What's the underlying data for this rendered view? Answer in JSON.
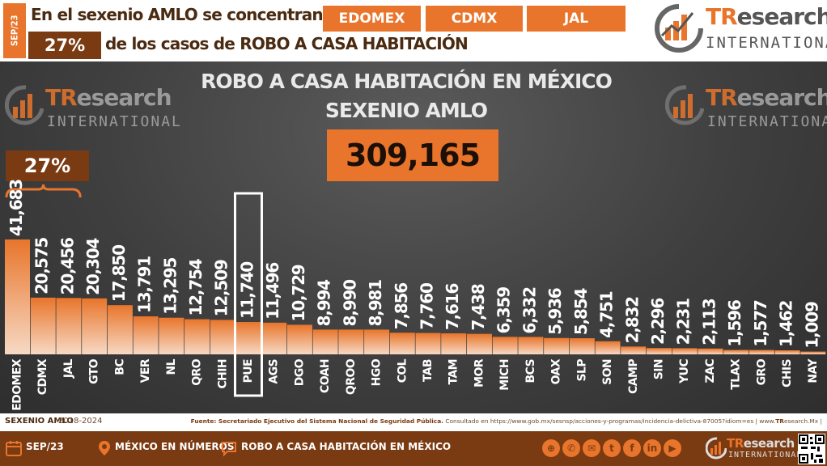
{
  "header": {
    "date_tab": "SEP/23",
    "headline_line1": "En el sexenio AMLO se concentran en",
    "headline_line2": "de los casos de ROBO A CASA HABITACIÓN",
    "headline_pct": "27%",
    "top_states": [
      "EDOMEX",
      "CDMX",
      "JAL"
    ]
  },
  "logo": {
    "brand_tr": "TR",
    "brand_rest": "esearch",
    "sub": "INTERNATIONAL"
  },
  "chart_title": "ROBO A CASA HABITACIÓN EN MÉXICO",
  "chart_subtitle": "SEXENIO AMLO",
  "total": "309,165",
  "bracket_pct": "27%",
  "chart_data": {
    "type": "bar",
    "title": "ROBO A CASA HABITACIÓN EN MÉXICO",
    "subtitle": "SEXENIO AMLO",
    "categories": [
      "EDOMEX",
      "CDMX",
      "JAL",
      "GTO",
      "BC",
      "VER",
      "NL",
      "QRO",
      "CHIH",
      "PUE",
      "AGS",
      "DGO",
      "COAH",
      "QROO",
      "HGO",
      "COL",
      "TAB",
      "TAM",
      "MOR",
      "MICH",
      "BCS",
      "OAX",
      "SLP",
      "SON",
      "CAMP",
      "SIN",
      "YUC",
      "ZAC",
      "TLAX",
      "GRO",
      "CHIS",
      "NAY"
    ],
    "values": [
      41683,
      20575,
      20456,
      20304,
      17850,
      13791,
      13295,
      12754,
      12509,
      11740,
      11496,
      10729,
      8994,
      8990,
      8981,
      7856,
      7760,
      7616,
      7438,
      6359,
      6332,
      5936,
      5854,
      4751,
      2832,
      2296,
      2231,
      2113,
      1596,
      1577,
      1462,
      1009
    ],
    "value_labels": [
      "41,683",
      "20,575",
      "20,456",
      "20,304",
      "17,850",
      "13,791",
      "13,295",
      "12,754",
      "12,509",
      "11,740",
      "11,496",
      "10,729",
      "8,994",
      "8,990",
      "8,981",
      "7,856",
      "7,760",
      "7,616",
      "7,438",
      "6,359",
      "6,332",
      "5,936",
      "5,854",
      "4,751",
      "2,832",
      "2,296",
      "2,231",
      "2,113",
      "1,596",
      "1,577",
      "1,462",
      "1,009"
    ],
    "highlighted_category": "PUE",
    "bracket_categories": [
      "EDOMEX",
      "CDMX",
      "JAL"
    ],
    "bar_color_top": "#e8752b",
    "bar_color_bottom": "#f7d9c4",
    "xlabel": "",
    "ylabel": "",
    "grid": false
  },
  "source": {
    "period_label": "SEXENIO AMLO",
    "period_years": "2018-2024",
    "prefix": "Fuente: Secretariado Ejecutivo del Sistema Nacional de Seguridad Pública.",
    "consulted": "Consultado en https://www.gob.mx/sesnsp/acciones-y-programas/incidencia-delictiva-87005?idiom=es |",
    "site_prefix": "www.",
    "site_brand": "TR",
    "site_suffix": "esearch.Mx |"
  },
  "footer": {
    "date": "SEP/23",
    "section": "MÉXICO EN NÚMEROS",
    "topic": "ROBO A CASA HABITACIÓN EN MÉXICO",
    "social_icons": [
      "globe-icon",
      "whatsapp-icon",
      "mail-icon",
      "twitter-icon",
      "facebook-icon",
      "linkedin-icon",
      "youtube-icon"
    ]
  },
  "colors": {
    "accent": "#e8752b",
    "dark_brown": "#7a3a12",
    "panel": "#404040"
  }
}
